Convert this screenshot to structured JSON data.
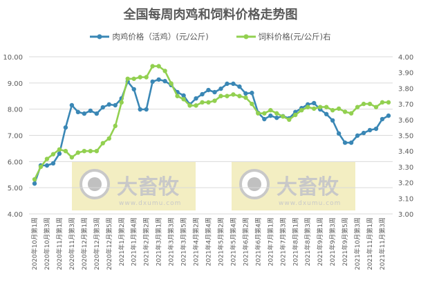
{
  "chart_data": {
    "type": "line",
    "title": "全国每周肉鸡和饲料价格走势图",
    "x_tick_labels": [
      "2020年10月第1周",
      "2020年10月第3周",
      "2020年11月第1周",
      "2020年11月第3周",
      "2020年12月第1周",
      "2020年12月第3周",
      "2020年12月第5周",
      "2021年1月第2周",
      "2021年1月第4周",
      "2021年2月第2周",
      "2021年3月第1周",
      "2021年3月第3周",
      "2021年3月第5周",
      "2021年4月第2周",
      "2021年4月第4周",
      "2021年5月第2周",
      "2021年5月第4周",
      "2021年6月第2周",
      "2021年6月第4周",
      "2021年7月第1周",
      "2021年7月第3周",
      "2021年8月第1周",
      "2021年8月第3周",
      "2021年9月第1周",
      "2021年9月第3周",
      "2021年9月第5周",
      "2021年10月第3周",
      "2021年11月第1周",
      "2021年11月第3周"
    ],
    "y_left": {
      "range": [
        4,
        10
      ],
      "ticks": [
        "4.00",
        "5.00",
        "6.00",
        "7.00",
        "8.00",
        "9.00",
        "10.00"
      ]
    },
    "y_right": {
      "range": [
        3,
        4
      ],
      "ticks": [
        "3.00",
        "3.10",
        "3.20",
        "3.30",
        "3.40",
        "3.50",
        "3.60",
        "3.70",
        "3.80",
        "3.90",
        "4.00"
      ]
    },
    "grid": true,
    "legend_placement": "top",
    "series": [
      {
        "name": "肉鸡价格（活鸡）(元/公斤)",
        "axis": "left",
        "color": "#3a87b5",
        "values": [
          5.16,
          5.85,
          5.85,
          5.93,
          6.3,
          7.3,
          8.15,
          7.89,
          7.83,
          7.94,
          7.83,
          8.07,
          8.18,
          8.15,
          8.41,
          9.05,
          8.76,
          7.99,
          7.99,
          9.05,
          9.13,
          9.07,
          8.92,
          8.65,
          8.52,
          8.18,
          8.41,
          8.57,
          8.73,
          8.65,
          8.78,
          8.97,
          8.97,
          8.86,
          8.6,
          8.62,
          7.86,
          7.62,
          7.75,
          7.67,
          7.73,
          7.65,
          7.89,
          8.04,
          8.18,
          8.23,
          7.99,
          7.81,
          7.57,
          7.07,
          6.72,
          6.72,
          6.99,
          7.09,
          7.2,
          7.25,
          7.62,
          7.75
        ]
      },
      {
        "name": "饲料价格(元/公斤)右",
        "axis": "right",
        "color": "#92d050",
        "values": [
          3.22,
          3.3,
          3.35,
          3.38,
          3.41,
          3.4,
          3.36,
          3.39,
          3.4,
          3.4,
          3.4,
          3.45,
          3.48,
          3.56,
          3.71,
          3.86,
          3.86,
          3.87,
          3.87,
          3.94,
          3.94,
          3.91,
          3.83,
          3.75,
          3.73,
          3.69,
          3.69,
          3.71,
          3.71,
          3.72,
          3.75,
          3.75,
          3.76,
          3.75,
          3.74,
          3.7,
          3.64,
          3.64,
          3.66,
          3.64,
          3.62,
          3.6,
          3.63,
          3.66,
          3.68,
          3.67,
          3.68,
          3.68,
          3.66,
          3.67,
          3.65,
          3.64,
          3.68,
          3.7,
          3.7,
          3.68,
          3.71,
          3.71
        ]
      }
    ]
  },
  "watermark": {
    "brand": "大畜牧",
    "url": "www.dxumu.com",
    "color": "#f3eec2"
  }
}
